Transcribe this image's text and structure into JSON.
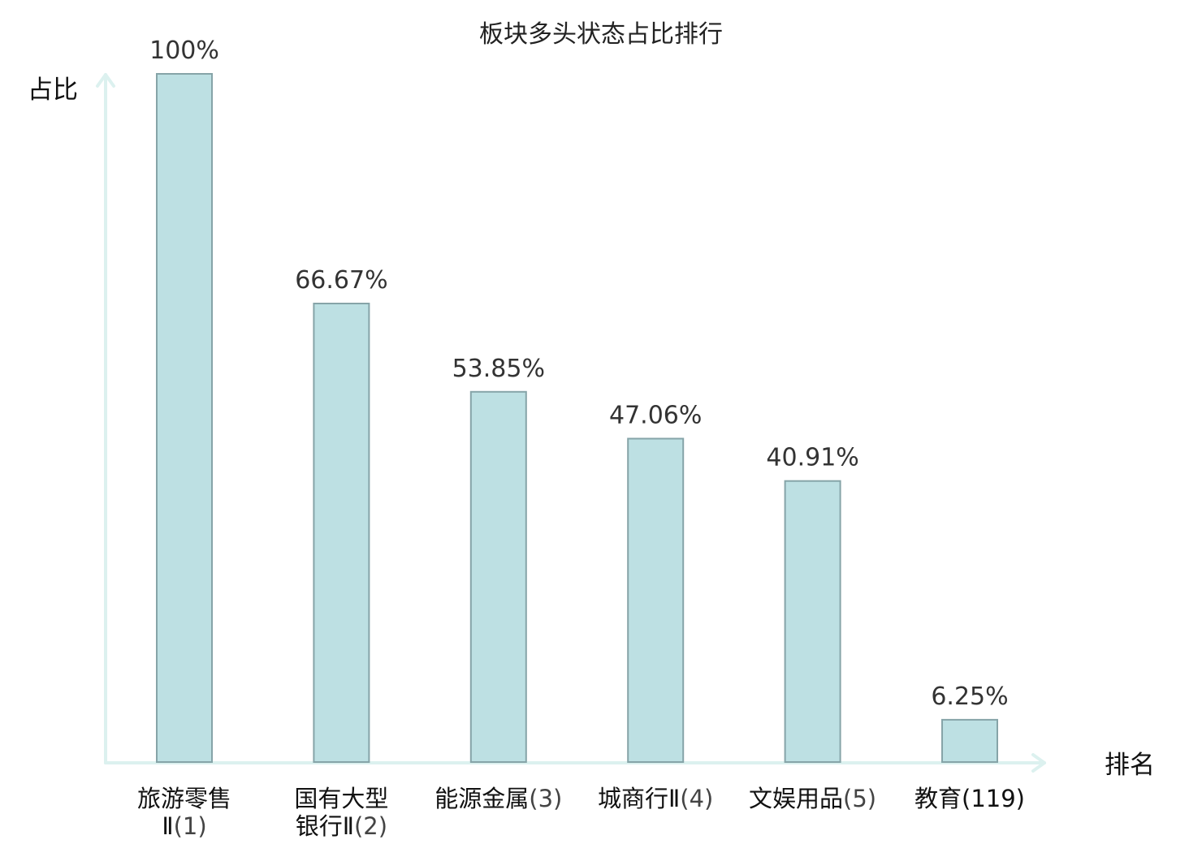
{
  "chart_data": {
    "type": "bar",
    "title": "板块多头状态占比排行",
    "xlabel": "排名",
    "ylabel": "占比",
    "categories": [
      {
        "lines": [
          "旅游零售",
          "Ⅱ"
        ],
        "rank": "(1)",
        "highlight": false
      },
      {
        "lines": [
          "国有大型",
          "银行Ⅱ"
        ],
        "rank": "(2)",
        "highlight": false
      },
      {
        "lines": [
          "能源金属"
        ],
        "rank": "(3)",
        "highlight": false
      },
      {
        "lines": [
          "城商行Ⅱ"
        ],
        "rank": "(4)",
        "highlight": false
      },
      {
        "lines": [
          "文娱用品"
        ],
        "rank": "(5)",
        "highlight": false
      },
      {
        "lines": [
          "教育"
        ],
        "rank": "(119)",
        "highlight": true
      }
    ],
    "values": [
      100,
      66.67,
      53.85,
      47.06,
      40.91,
      6.25
    ],
    "value_labels": [
      "100%",
      "66.67%",
      "53.85%",
      "47.06%",
      "40.91%",
      "6.25%"
    ],
    "ylim": [
      0,
      100
    ],
    "grid": false,
    "colors": {
      "bar_fill": "#bde0e3",
      "bar_stroke": "#86a4a8",
      "axis": "#dcf1ef",
      "highlight": "#e02020",
      "text": "#111111"
    }
  }
}
